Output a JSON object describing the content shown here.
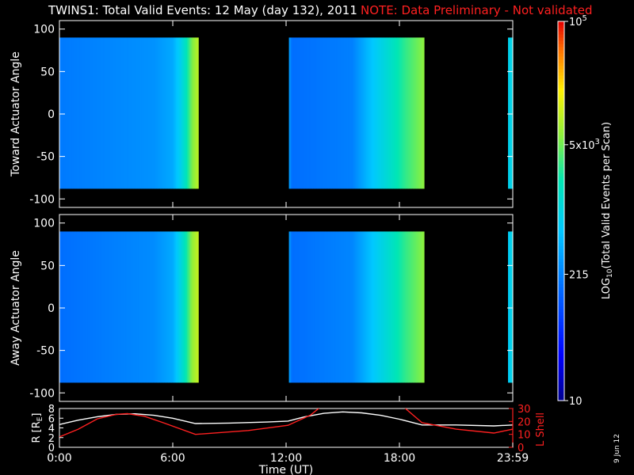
{
  "title": "TWINS1: Total Valid Events: 12 May (day 132), 2011",
  "note": "NOTE: Data Preliminary - Not validated",
  "date_stamp": "9 Jun 12",
  "colors": {
    "background": "#000000",
    "text": "#ffffff",
    "note": "#ff2020",
    "r_line": "#ffffff",
    "lshell_line": "#ff2020"
  },
  "chart_data": [
    {
      "type": "heatmap",
      "panel": "top",
      "ylabel": "Toward Actuator Angle",
      "ylim": [
        -110,
        110
      ],
      "yticks": [
        "100",
        "50",
        "0",
        "-50",
        "-100"
      ],
      "xlim_hours": [
        0,
        24
      ],
      "data_extent_y": [
        -88,
        90
      ],
      "colorscale": "log",
      "segments": [
        {
          "start_h": 0.0,
          "end_h": 7.35,
          "profile": [
            [
              0.0,
              0.32
            ],
            [
              5.0,
              0.36
            ],
            [
              6.0,
              0.4
            ],
            [
              6.4,
              0.48
            ],
            [
              6.75,
              0.58
            ],
            [
              7.0,
              0.68
            ],
            [
              7.35,
              0.75
            ]
          ]
        },
        {
          "start_h": 12.15,
          "end_h": 19.3,
          "profile": [
            [
              12.15,
              0.4
            ],
            [
              12.3,
              0.3
            ],
            [
              15.5,
              0.33
            ],
            [
              16.3,
              0.42
            ],
            [
              17.3,
              0.52
            ],
            [
              18.3,
              0.62
            ],
            [
              19.3,
              0.7
            ]
          ]
        },
        {
          "start_h": 23.75,
          "end_h": 24.0,
          "profile": [
            [
              23.75,
              0.48
            ],
            [
              24.0,
              0.5
            ]
          ]
        }
      ]
    },
    {
      "type": "heatmap",
      "panel": "middle",
      "ylabel": "Away Actuator Angle",
      "ylim": [
        -110,
        110
      ],
      "yticks": [
        "100",
        "50",
        "0",
        "-50",
        "-100"
      ],
      "xlim_hours": [
        0,
        24
      ],
      "data_extent_y": [
        -88,
        90
      ],
      "colorscale": "log",
      "segments": [
        {
          "start_h": 0.0,
          "end_h": 7.35,
          "profile": [
            [
              0.0,
              0.3
            ],
            [
              5.0,
              0.35
            ],
            [
              6.0,
              0.4
            ],
            [
              6.4,
              0.5
            ],
            [
              6.75,
              0.6
            ],
            [
              7.0,
              0.7
            ],
            [
              7.35,
              0.76
            ]
          ]
        },
        {
          "start_h": 12.15,
          "end_h": 19.3,
          "profile": [
            [
              12.15,
              0.4
            ],
            [
              12.3,
              0.3
            ],
            [
              15.5,
              0.34
            ],
            [
              16.3,
              0.42
            ],
            [
              17.3,
              0.52
            ],
            [
              18.3,
              0.62
            ],
            [
              19.3,
              0.7
            ]
          ]
        },
        {
          "start_h": 23.75,
          "end_h": 24.0,
          "profile": [
            [
              23.75,
              0.46
            ],
            [
              24.0,
              0.5
            ]
          ]
        }
      ]
    },
    {
      "type": "line",
      "panel": "bottom",
      "ylabel_left": "R [R",
      "ylabel_left_sub": "E",
      "ylabel_left_close": "]",
      "ylabel_right": "L Shell",
      "ylim_left": [
        0,
        8
      ],
      "yticks_left": [
        "8",
        "6",
        "4",
        "2",
        "0"
      ],
      "ylim_right": [
        0,
        30
      ],
      "yticks_right": [
        "30",
        "20",
        "10",
        "0"
      ],
      "xlabel": "Time (UT)",
      "xlim_hours": [
        0,
        24
      ],
      "xticks": [
        {
          "h": 0,
          "label": "0:00"
        },
        {
          "h": 6,
          "label": "6:00"
        },
        {
          "h": 12,
          "label": "12:00"
        },
        {
          "h": 18,
          "label": "18:00"
        },
        {
          "h": 24,
          "label": "23:59"
        }
      ],
      "series": [
        {
          "axis": "left",
          "color": "#ffffff",
          "x": [
            0,
            1,
            2,
            3,
            4,
            5,
            6,
            7.2,
            9,
            11,
            12.1,
            13,
            14,
            15,
            16,
            17,
            18,
            19.2,
            21,
            23,
            24
          ],
          "y": [
            4.7,
            5.6,
            6.3,
            6.8,
            6.9,
            6.6,
            6.0,
            4.9,
            5.0,
            5.2,
            5.4,
            6.3,
            7.0,
            7.3,
            7.1,
            6.6,
            5.8,
            4.6,
            4.6,
            4.4,
            4.6
          ]
        },
        {
          "axis": "right",
          "color": "#ff2020",
          "x": [
            0,
            1,
            2,
            3,
            3.6,
            4.5,
            5.5,
            7.2,
            10,
            12.1,
            13.3,
            14.9,
            17.2,
            19.2,
            21,
            23,
            24
          ],
          "y": [
            8.0,
            14,
            22,
            25.5,
            26,
            24,
            19,
            10,
            13,
            17,
            25,
            44,
            44,
            19,
            14,
            11,
            14
          ]
        }
      ]
    },
    {
      "type": "colorbar",
      "label": "LOG",
      "label_sub": "10",
      "label_rest": "(Total Valid Events per Scan)",
      "range": [
        10,
        100000
      ],
      "ticks": [
        {
          "value": 100000,
          "base": "10",
          "exp": "5"
        },
        {
          "value": 5000,
          "base": "5x10",
          "exp": "3"
        },
        {
          "value": 215,
          "base": "215",
          "exp": ""
        },
        {
          "value": 10,
          "base": "10",
          "exp": ""
        }
      ]
    }
  ]
}
